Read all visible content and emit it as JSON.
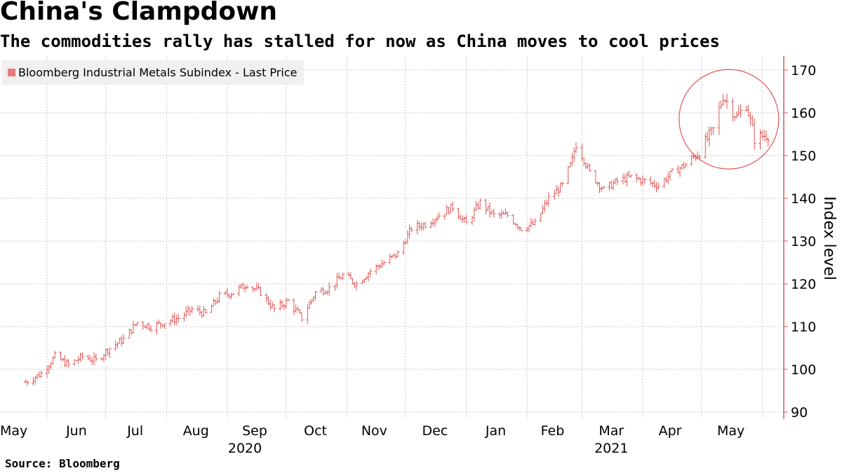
{
  "title": "China's Clampdown",
  "subtitle": "The commodities rally has stalled for now as China moves to cool prices",
  "source": "Source: Bloomberg",
  "colors": {
    "series": "#e05555",
    "axis": "#e05555",
    "grid": "#c8c8c8",
    "legend_bg": "#f0f0f0",
    "legend_swatch": "#e87a7a"
  },
  "chart_data": {
    "type": "line",
    "style": "ohlc-bars",
    "title": "China's Clampdown",
    "subtitle": "The commodities rally has stalled for now as China moves to cool prices",
    "ylabel": "Index level",
    "xlabel": "",
    "ylim": [
      90,
      170
    ],
    "yticks": [
      90,
      100,
      110,
      120,
      130,
      140,
      150,
      160,
      170
    ],
    "grid": true,
    "legend_placement": "top-left",
    "x_tick_labels": [
      "May",
      "Jun",
      "Jul",
      "Aug",
      "Sep",
      "Oct",
      "Nov",
      "Dec",
      "Jan",
      "Feb",
      "Mar",
      "Apr",
      "May"
    ],
    "x_year_labels": [
      "2020",
      "2021"
    ],
    "annotation": "circle highlighting May 2021 peak and decline",
    "series": [
      {
        "name": "Bloomberg Industrial Metals Subindex - Last Price",
        "points": [
          {
            "x": "2020-05-21",
            "y": 97
          },
          {
            "x": "2020-05-29",
            "y": 99
          },
          {
            "x": "2020-06-05",
            "y": 103
          },
          {
            "x": "2020-06-12",
            "y": 101
          },
          {
            "x": "2020-06-19",
            "y": 103
          },
          {
            "x": "2020-06-26",
            "y": 102
          },
          {
            "x": "2020-07-03",
            "y": 105
          },
          {
            "x": "2020-07-10",
            "y": 107
          },
          {
            "x": "2020-07-17",
            "y": 111
          },
          {
            "x": "2020-07-24",
            "y": 110
          },
          {
            "x": "2020-07-31",
            "y": 111
          },
          {
            "x": "2020-08-07",
            "y": 112
          },
          {
            "x": "2020-08-14",
            "y": 114
          },
          {
            "x": "2020-08-21",
            "y": 113
          },
          {
            "x": "2020-08-28",
            "y": 117
          },
          {
            "x": "2020-09-04",
            "y": 118
          },
          {
            "x": "2020-09-11",
            "y": 120
          },
          {
            "x": "2020-09-18",
            "y": 118
          },
          {
            "x": "2020-09-25",
            "y": 114
          },
          {
            "x": "2020-10-02",
            "y": 116
          },
          {
            "x": "2020-10-09",
            "y": 112
          },
          {
            "x": "2020-10-16",
            "y": 118
          },
          {
            "x": "2020-10-23",
            "y": 119
          },
          {
            "x": "2020-10-30",
            "y": 122
          },
          {
            "x": "2020-11-06",
            "y": 120
          },
          {
            "x": "2020-11-13",
            "y": 123
          },
          {
            "x": "2020-11-20",
            "y": 125
          },
          {
            "x": "2020-11-27",
            "y": 127
          },
          {
            "x": "2020-12-04",
            "y": 133
          },
          {
            "x": "2020-12-11",
            "y": 134
          },
          {
            "x": "2020-12-18",
            "y": 136
          },
          {
            "x": "2020-12-25",
            "y": 138
          },
          {
            "x": "2021-01-01",
            "y": 134
          },
          {
            "x": "2021-01-08",
            "y": 139
          },
          {
            "x": "2021-01-15",
            "y": 136
          },
          {
            "x": "2021-01-22",
            "y": 136
          },
          {
            "x": "2021-01-29",
            "y": 133
          },
          {
            "x": "2021-02-05",
            "y": 134
          },
          {
            "x": "2021-02-12",
            "y": 140
          },
          {
            "x": "2021-02-19",
            "y": 143
          },
          {
            "x": "2021-02-24",
            "y": 149
          },
          {
            "x": "2021-02-26",
            "y": 153
          },
          {
            "x": "2021-03-05",
            "y": 146
          },
          {
            "x": "2021-03-12",
            "y": 142
          },
          {
            "x": "2021-03-19",
            "y": 144
          },
          {
            "x": "2021-03-26",
            "y": 145
          },
          {
            "x": "2021-04-02",
            "y": 144
          },
          {
            "x": "2021-04-09",
            "y": 143
          },
          {
            "x": "2021-04-16",
            "y": 146
          },
          {
            "x": "2021-04-23",
            "y": 148
          },
          {
            "x": "2021-04-30",
            "y": 151
          },
          {
            "x": "2021-05-07",
            "y": 156
          },
          {
            "x": "2021-05-12",
            "y": 164
          },
          {
            "x": "2021-05-19",
            "y": 159
          },
          {
            "x": "2021-05-24",
            "y": 162
          },
          {
            "x": "2021-05-28",
            "y": 154
          },
          {
            "x": "2021-06-04",
            "y": 155
          }
        ]
      }
    ]
  }
}
